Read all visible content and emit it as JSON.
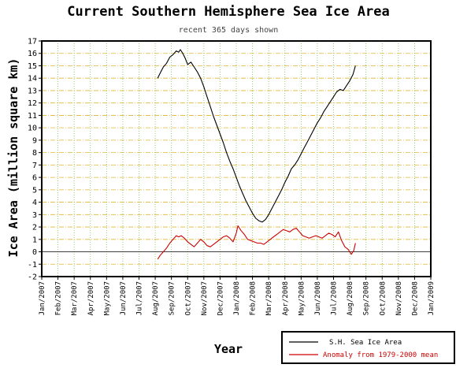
{
  "chart_data": {
    "type": "line",
    "title": "Current Southern Hemisphere Sea Ice Area",
    "subtitle": "recent 365 days shown",
    "xlabel": "Year",
    "ylabel": "Ice Area (million square km)",
    "ylim": [
      -2,
      17
    ],
    "y_ticks": [
      -2,
      -1,
      0,
      1,
      2,
      3,
      4,
      5,
      6,
      7,
      8,
      9,
      10,
      11,
      12,
      13,
      14,
      15,
      16,
      17
    ],
    "x_ticks": [
      "Jan/2007",
      "Feb/2007",
      "Mar/2007",
      "Apr/2007",
      "May/2007",
      "Jun/2007",
      "Jul/2007",
      "Aug/2007",
      "Sep/2007",
      "Oct/2007",
      "Nov/2007",
      "Dec/2007",
      "Jan/2008",
      "Feb/2008",
      "Mar/2008",
      "Apr/2008",
      "May/2008",
      "Jun/2008",
      "Jul/2008",
      "Aug/2008",
      "Sep/2008",
      "Oct/2008",
      "Nov/2008",
      "Dec/2008",
      "Jan/2009"
    ],
    "grid": true,
    "legend_position": "bottom-right",
    "series": [
      {
        "name": "S.H. Sea Ice Area",
        "color": "#000000",
        "x": [
          7.15,
          7.3,
          7.5,
          7.7,
          7.9,
          8.1,
          8.3,
          8.45,
          8.55,
          8.7,
          8.85,
          9.0,
          9.2,
          9.4,
          9.6,
          9.8,
          10.0,
          10.2,
          10.4,
          10.6,
          10.8,
          11.0,
          11.2,
          11.4,
          11.6,
          11.8,
          12.0,
          12.2,
          12.4,
          12.6,
          12.8,
          13.0,
          13.2,
          13.4,
          13.6,
          13.8,
          14.0,
          14.2,
          14.4,
          14.6,
          14.8,
          15.0,
          15.2,
          15.4,
          15.6,
          15.8,
          16.0,
          16.2,
          16.4,
          16.6,
          16.8,
          17.0,
          17.2,
          17.4,
          17.6,
          17.8,
          18.0,
          18.2,
          18.4,
          18.6,
          18.8,
          19.0,
          19.2,
          19.35
        ],
        "values": [
          14.0,
          14.4,
          14.9,
          15.2,
          15.7,
          15.9,
          16.2,
          16.1,
          16.3,
          16.0,
          15.6,
          15.1,
          15.3,
          14.9,
          14.5,
          14.0,
          13.3,
          12.5,
          11.7,
          10.9,
          10.2,
          9.5,
          8.8,
          8.0,
          7.3,
          6.7,
          6.0,
          5.3,
          4.7,
          4.1,
          3.6,
          3.1,
          2.7,
          2.5,
          2.4,
          2.6,
          3.0,
          3.5,
          4.0,
          4.5,
          5.0,
          5.6,
          6.1,
          6.7,
          7.0,
          7.4,
          7.9,
          8.4,
          8.9,
          9.4,
          9.9,
          10.4,
          10.8,
          11.3,
          11.7,
          12.1,
          12.5,
          12.9,
          13.1,
          13.0,
          13.4,
          13.8,
          14.3,
          15.0
        ]
      },
      {
        "name": "Anomaly from 1979-2000 mean",
        "color": "#cc0000",
        "x": [
          7.15,
          7.3,
          7.5,
          7.7,
          7.9,
          8.1,
          8.3,
          8.45,
          8.6,
          8.8,
          9.0,
          9.2,
          9.4,
          9.6,
          9.8,
          10.0,
          10.2,
          10.4,
          10.6,
          10.8,
          11.0,
          11.2,
          11.4,
          11.6,
          11.8,
          12.0,
          12.1,
          12.3,
          12.5,
          12.7,
          12.9,
          13.1,
          13.3,
          13.5,
          13.7,
          13.9,
          14.1,
          14.3,
          14.5,
          14.7,
          14.9,
          15.1,
          15.3,
          15.5,
          15.7,
          15.9,
          16.1,
          16.3,
          16.5,
          16.7,
          16.9,
          17.1,
          17.3,
          17.5,
          17.7,
          17.9,
          18.1,
          18.3,
          18.5,
          18.7,
          18.9,
          19.1,
          19.25,
          19.35
        ],
        "values": [
          -0.6,
          -0.3,
          0.0,
          0.3,
          0.7,
          1.0,
          1.3,
          1.2,
          1.3,
          1.1,
          0.8,
          0.6,
          0.4,
          0.7,
          1.0,
          0.8,
          0.5,
          0.4,
          0.6,
          0.8,
          1.0,
          1.2,
          1.3,
          1.1,
          0.8,
          1.5,
          2.1,
          1.7,
          1.4,
          1.0,
          0.9,
          0.8,
          0.7,
          0.7,
          0.6,
          0.8,
          1.0,
          1.2,
          1.4,
          1.6,
          1.8,
          1.7,
          1.6,
          1.8,
          1.9,
          1.6,
          1.3,
          1.2,
          1.1,
          1.2,
          1.3,
          1.2,
          1.1,
          1.3,
          1.5,
          1.4,
          1.2,
          1.6,
          0.9,
          0.4,
          0.2,
          -0.2,
          0.1,
          0.7
        ]
      }
    ]
  }
}
